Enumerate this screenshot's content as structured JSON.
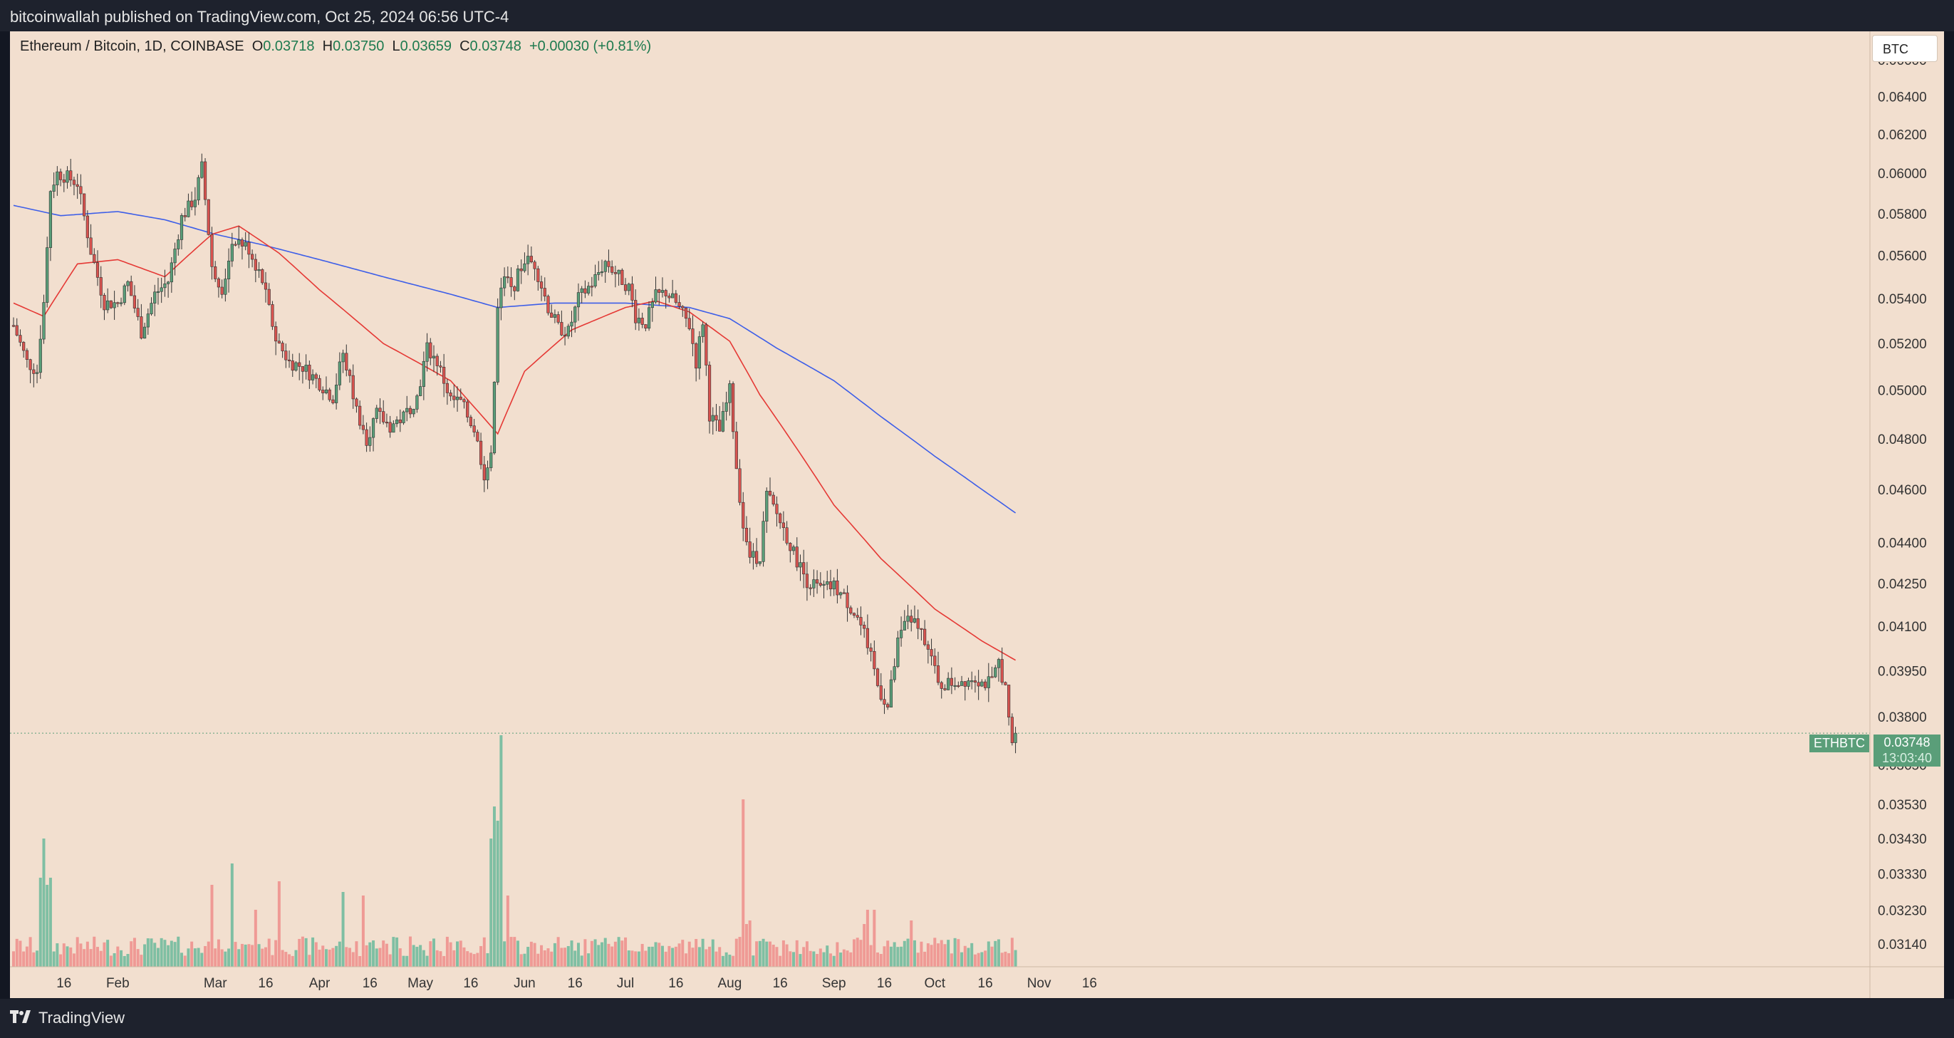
{
  "header": {
    "publisher_line": "bitcoinwallah published on TradingView.com, Oct 25, 2024 06:56 UTC-4"
  },
  "footer": {
    "brand": "TradingView",
    "brand_mark": "tradingview-logo-icon"
  },
  "legend": {
    "symbol": "Ethereum / Bitcoin, 1D, COINBASE",
    "open_label": "O",
    "open": "0.03718",
    "high_label": "H",
    "high": "0.03750",
    "low_label": "L",
    "low": "0.03659",
    "close_label": "C",
    "close": "0.03748",
    "change": "+0.00030 (+0.81%)"
  },
  "currency_button": "BTC",
  "price_badge": {
    "ticker": "ETHBTC",
    "price": "0.03748",
    "countdown": "13:03:40"
  },
  "colors": {
    "up": "#5a9e79",
    "down": "#d9534f",
    "ma_short": "#e53935",
    "ma_long": "#3d5ee8",
    "volume_up": "#7fbfa3",
    "volume_down": "#ef9a95",
    "background": "#f2dfcf"
  },
  "chart_data": {
    "type": "candlestick",
    "y_scale": "log",
    "ylim": [
      0.0308,
      0.0676
    ],
    "price_ticks": [
      "0.06600",
      "0.06400",
      "0.06200",
      "0.06000",
      "0.05800",
      "0.05600",
      "0.05400",
      "0.05200",
      "0.05000",
      "0.04800",
      "0.04600",
      "0.04400",
      "0.04250",
      "0.04100",
      "0.03950",
      "0.03800",
      "0.03650",
      "0.03530",
      "0.03430",
      "0.03330",
      "0.03230",
      "0.03140"
    ],
    "x_ticks": [
      "16",
      "Feb",
      "Mar",
      "16",
      "Apr",
      "16",
      "May",
      "16",
      "Jun",
      "16",
      "Jul",
      "16",
      "Aug",
      "16",
      "Sep",
      "16",
      "Oct",
      "16",
      "Nov",
      "16"
    ],
    "x_tick_dates": [
      "2024-01-16",
      "2024-02-01",
      "2024-03-01",
      "2024-03-16",
      "2024-04-01",
      "2024-04-16",
      "2024-05-01",
      "2024-05-16",
      "2024-06-01",
      "2024-06-16",
      "2024-07-01",
      "2024-07-16",
      "2024-08-01",
      "2024-08-16",
      "2024-09-01",
      "2024-09-16",
      "2024-10-01",
      "2024-10-16",
      "2024-11-01",
      "2024-11-16"
    ],
    "first_date": "2024-01-01",
    "close_anchors": [
      [
        "2024-01-01",
        0.0528
      ],
      [
        "2024-01-05",
        0.0512
      ],
      [
        "2024-01-08",
        0.0508
      ],
      [
        "2024-01-10",
        0.054
      ],
      [
        "2024-01-12",
        0.0592
      ],
      [
        "2024-01-14",
        0.06
      ],
      [
        "2024-01-17",
        0.0598
      ],
      [
        "2024-01-20",
        0.0595
      ],
      [
        "2024-01-24",
        0.0562
      ],
      [
        "2024-01-28",
        0.0538
      ],
      [
        "2024-02-01",
        0.0538
      ],
      [
        "2024-02-04",
        0.0547
      ],
      [
        "2024-02-08",
        0.0525
      ],
      [
        "2024-02-12",
        0.0542
      ],
      [
        "2024-02-16",
        0.0548
      ],
      [
        "2024-02-20",
        0.0578
      ],
      [
        "2024-02-24",
        0.0588
      ],
      [
        "2024-02-26",
        0.0603
      ],
      [
        "2024-02-29",
        0.0555
      ],
      [
        "2024-03-03",
        0.0545
      ],
      [
        "2024-03-07",
        0.0568
      ],
      [
        "2024-03-11",
        0.0563
      ],
      [
        "2024-03-15",
        0.0548
      ],
      [
        "2024-03-19",
        0.0522
      ],
      [
        "2024-03-23",
        0.0512
      ],
      [
        "2024-03-27",
        0.051
      ],
      [
        "2024-04-01",
        0.0503
      ],
      [
        "2024-04-05",
        0.0497
      ],
      [
        "2024-04-08",
        0.0516
      ],
      [
        "2024-04-12",
        0.0492
      ],
      [
        "2024-04-15",
        0.048
      ],
      [
        "2024-04-18",
        0.049
      ],
      [
        "2024-04-22",
        0.0485
      ],
      [
        "2024-04-26",
        0.0489
      ],
      [
        "2024-04-30",
        0.0497
      ],
      [
        "2024-05-03",
        0.0518
      ],
      [
        "2024-05-06",
        0.0512
      ],
      [
        "2024-05-10",
        0.0496
      ],
      [
        "2024-05-13",
        0.0495
      ],
      [
        "2024-05-17",
        0.0484
      ],
      [
        "2024-05-20",
        0.0466
      ],
      [
        "2024-05-22",
        0.0472
      ],
      [
        "2024-05-24",
        0.0535
      ],
      [
        "2024-05-26",
        0.0551
      ],
      [
        "2024-05-28",
        0.0543
      ],
      [
        "2024-06-01",
        0.0558
      ],
      [
        "2024-06-04",
        0.0556
      ],
      [
        "2024-06-08",
        0.0536
      ],
      [
        "2024-06-11",
        0.0527
      ],
      [
        "2024-06-14",
        0.0525
      ],
      [
        "2024-06-17",
        0.054
      ],
      [
        "2024-06-21",
        0.0547
      ],
      [
        "2024-06-25",
        0.0557
      ],
      [
        "2024-06-28",
        0.0552
      ],
      [
        "2024-07-02",
        0.0545
      ],
      [
        "2024-07-04",
        0.0532
      ],
      [
        "2024-07-07",
        0.0529
      ],
      [
        "2024-07-10",
        0.0541
      ],
      [
        "2024-07-13",
        0.0543
      ],
      [
        "2024-07-16",
        0.0538
      ],
      [
        "2024-07-20",
        0.0528
      ],
      [
        "2024-07-22",
        0.0512
      ],
      [
        "2024-07-24",
        0.053
      ],
      [
        "2024-07-26",
        0.049
      ],
      [
        "2024-07-29",
        0.0483
      ],
      [
        "2024-08-01",
        0.05
      ],
      [
        "2024-08-03",
        0.0469
      ],
      [
        "2024-08-05",
        0.0446
      ],
      [
        "2024-08-07",
        0.0434
      ],
      [
        "2024-08-10",
        0.0435
      ],
      [
        "2024-08-12",
        0.0458
      ],
      [
        "2024-08-16",
        0.0448
      ],
      [
        "2024-08-20",
        0.0436
      ],
      [
        "2024-08-24",
        0.0426
      ],
      [
        "2024-08-28",
        0.0423
      ],
      [
        "2024-09-01",
        0.0424
      ],
      [
        "2024-09-04",
        0.042
      ],
      [
        "2024-09-08",
        0.0413
      ],
      [
        "2024-09-11",
        0.0404
      ],
      [
        "2024-09-14",
        0.039
      ],
      [
        "2024-09-17",
        0.0383
      ],
      [
        "2024-09-20",
        0.0404
      ],
      [
        "2024-09-23",
        0.0414
      ],
      [
        "2024-09-26",
        0.041
      ],
      [
        "2024-09-29",
        0.0404
      ],
      [
        "2024-10-02",
        0.039
      ],
      [
        "2024-10-06",
        0.0391
      ],
      [
        "2024-10-10",
        0.0392
      ],
      [
        "2024-10-13",
        0.0393
      ],
      [
        "2024-10-15",
        0.0391
      ],
      [
        "2024-10-18",
        0.0391
      ],
      [
        "2024-10-20",
        0.0398
      ],
      [
        "2024-10-22",
        0.0389
      ],
      [
        "2024-10-23",
        0.0378
      ],
      [
        "2024-10-24",
        0.03718
      ],
      [
        "2024-10-25",
        0.03748
      ]
    ],
    "ma_short_anchors": [
      [
        "2024-01-01",
        0.0538
      ],
      [
        "2024-01-10",
        0.0532
      ],
      [
        "2024-01-20",
        0.0556
      ],
      [
        "2024-02-01",
        0.0558
      ],
      [
        "2024-02-15",
        0.055
      ],
      [
        "2024-02-29",
        0.057
      ],
      [
        "2024-03-08",
        0.0574
      ],
      [
        "2024-03-20",
        0.0561
      ],
      [
        "2024-04-01",
        0.0544
      ],
      [
        "2024-04-20",
        0.052
      ],
      [
        "2024-05-10",
        0.0504
      ],
      [
        "2024-05-24",
        0.0482
      ],
      [
        "2024-06-01",
        0.0508
      ],
      [
        "2024-06-15",
        0.0526
      ],
      [
        "2024-07-01",
        0.0536
      ],
      [
        "2024-07-10",
        0.0539
      ],
      [
        "2024-07-20",
        0.0534
      ],
      [
        "2024-08-01",
        0.0521
      ],
      [
        "2024-08-10",
        0.0498
      ],
      [
        "2024-08-20",
        0.0478
      ],
      [
        "2024-09-01",
        0.0454
      ],
      [
        "2024-09-15",
        0.0434
      ],
      [
        "2024-10-01",
        0.0416
      ],
      [
        "2024-10-15",
        0.0405
      ],
      [
        "2024-10-25",
        0.03985
      ]
    ],
    "ma_long_anchors": [
      [
        "2024-01-01",
        0.0584
      ],
      [
        "2024-01-15",
        0.0579
      ],
      [
        "2024-02-01",
        0.0581
      ],
      [
        "2024-02-15",
        0.0577
      ],
      [
        "2024-03-01",
        0.057
      ],
      [
        "2024-03-15",
        0.0565
      ],
      [
        "2024-04-01",
        0.0558
      ],
      [
        "2024-04-20",
        0.055
      ],
      [
        "2024-05-10",
        0.0542
      ],
      [
        "2024-05-24",
        0.0536
      ],
      [
        "2024-06-10",
        0.0538
      ],
      [
        "2024-07-01",
        0.0538
      ],
      [
        "2024-07-20",
        0.0536
      ],
      [
        "2024-08-01",
        0.0531
      ],
      [
        "2024-08-15",
        0.0518
      ],
      [
        "2024-09-01",
        0.0504
      ],
      [
        "2024-09-15",
        0.0489
      ],
      [
        "2024-10-01",
        0.0473
      ],
      [
        "2024-10-15",
        0.046
      ],
      [
        "2024-10-25",
        0.0451
      ]
    ],
    "volume_spikes": [
      [
        "2024-01-09",
        2.5
      ],
      [
        "2024-01-10",
        3.6
      ],
      [
        "2024-01-11",
        2.3
      ],
      [
        "2024-01-12",
        2.5
      ],
      [
        "2024-02-29",
        2.3
      ],
      [
        "2024-03-06",
        2.9
      ],
      [
        "2024-03-13",
        1.6
      ],
      [
        "2024-03-20",
        2.4
      ],
      [
        "2024-04-08",
        2.1
      ],
      [
        "2024-04-14",
        2.0
      ],
      [
        "2024-05-22",
        3.6
      ],
      [
        "2024-05-23",
        4.5
      ],
      [
        "2024-05-24",
        4.1
      ],
      [
        "2024-05-25",
        6.5
      ],
      [
        "2024-05-27",
        2.0
      ],
      [
        "2024-08-05",
        4.7
      ],
      [
        "2024-08-06",
        1.2
      ],
      [
        "2024-08-07",
        1.3
      ],
      [
        "2024-09-10",
        1.2
      ],
      [
        "2024-09-11",
        1.6
      ],
      [
        "2024-09-13",
        1.6
      ],
      [
        "2024-09-24",
        1.3
      ]
    ]
  }
}
